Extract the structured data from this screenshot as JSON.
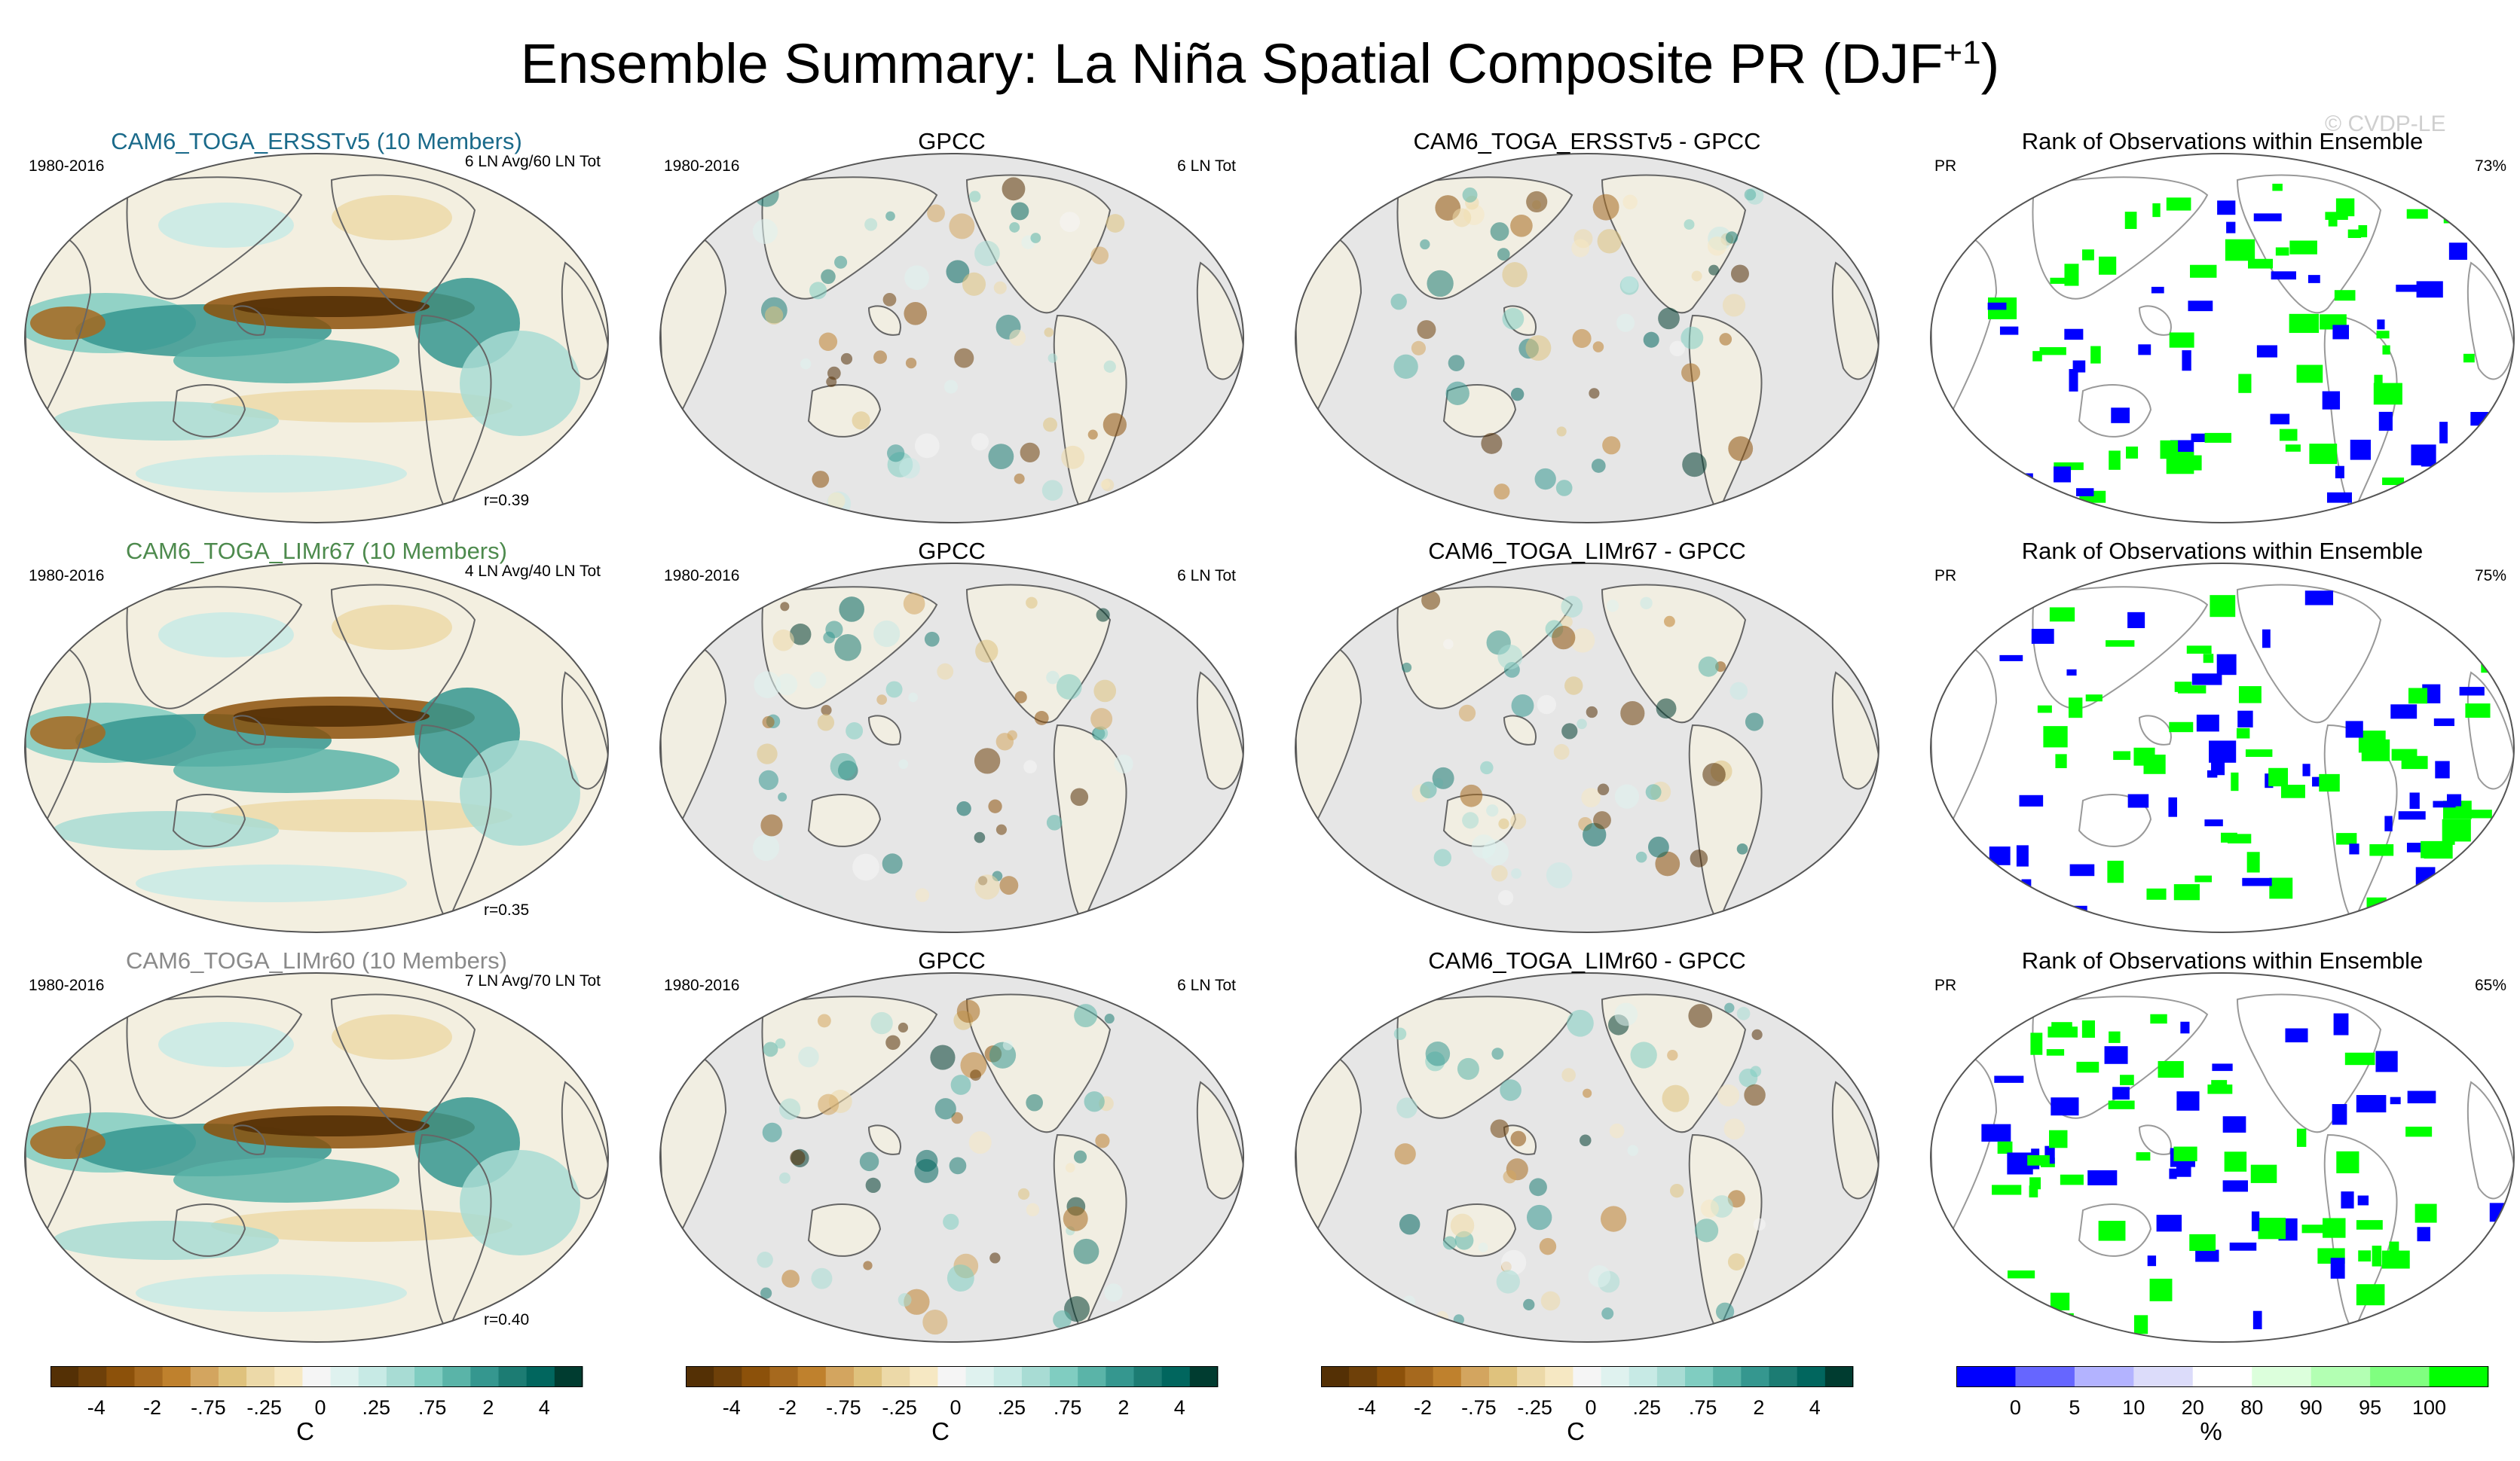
{
  "title": {
    "text": "Ensemble Summary: La Niña Spatial Composite PR (DJF",
    "sup": "+1",
    "close": ")"
  },
  "watermark": "© CVDP-LE",
  "colors": {
    "cam_ersst": "#1a6a8a",
    "cam_limr67": "#4d8a4d",
    "cam_limr60": "#8a8a8a",
    "land_mask": "#e6e6e6",
    "rank_low": "#0000ff",
    "rank_high": "#00ff00"
  },
  "chart_data": [
    {
      "type": "heatmap",
      "title": "CAM6_TOGA_ERSSTv5 (10 Members)",
      "title_color": "#1a6a8a",
      "left_label": "1980-2016",
      "right_label": "6 LN Avg/60 LN Tot",
      "corr_label": "r=0.39",
      "style": "model"
    },
    {
      "type": "heatmap",
      "title": "GPCC",
      "left_label": "1980-2016",
      "right_label": "6 LN Tot",
      "style": "obs"
    },
    {
      "type": "heatmap",
      "title": "CAM6_TOGA_ERSSTv5 - GPCC",
      "style": "diff"
    },
    {
      "type": "heatmap",
      "title": "Rank of Observations within Ensemble",
      "left_label": "PR",
      "right_label": "73%",
      "style": "rank"
    },
    {
      "type": "heatmap",
      "title": "CAM6_TOGA_LIMr67 (10 Members)",
      "title_color": "#4d8a4d",
      "left_label": "1980-2016",
      "right_label": "4 LN Avg/40 LN Tot",
      "corr_label": "r=0.35",
      "style": "model"
    },
    {
      "type": "heatmap",
      "title": "GPCC",
      "left_label": "1980-2016",
      "right_label": "6 LN Tot",
      "style": "obs"
    },
    {
      "type": "heatmap",
      "title": "CAM6_TOGA_LIMr67 - GPCC",
      "style": "diff"
    },
    {
      "type": "heatmap",
      "title": "Rank of Observations within Ensemble",
      "left_label": "PR",
      "right_label": "75%",
      "style": "rank"
    },
    {
      "type": "heatmap",
      "title": "CAM6_TOGA_LIMr60 (10 Members)",
      "title_color": "#8a8a8a",
      "left_label": "1980-2016",
      "right_label": "7 LN Avg/70 LN Tot",
      "corr_label": "r=0.40",
      "style": "model"
    },
    {
      "type": "heatmap",
      "title": "GPCC",
      "left_label": "1980-2016",
      "right_label": "6 LN Tot",
      "style": "obs"
    },
    {
      "type": "heatmap",
      "title": "CAM6_TOGA_LIMr60 - GPCC",
      "style": "diff"
    },
    {
      "type": "heatmap",
      "title": "Rank of Observations within Ensemble",
      "left_label": "PR",
      "right_label": "65%",
      "style": "rank"
    }
  ],
  "colorbars": [
    {
      "unit": "C",
      "labels": [
        "-4",
        "-2",
        "-.75",
        "-.25",
        "0",
        ".25",
        ".75",
        "2",
        "4"
      ],
      "colors": [
        "#543005",
        "#6e4009",
        "#8c510a",
        "#a6691e",
        "#bf812d",
        "#d3a55f",
        "#dfc27d",
        "#ecd9a8",
        "#f6e8c3",
        "#f5f5f5",
        "#dff2ef",
        "#c7eae5",
        "#a8dcd4",
        "#80cdc1",
        "#5ab4a8",
        "#35978f",
        "#1c7c73",
        "#01665e",
        "#003c30"
      ]
    },
    {
      "unit": "C",
      "labels": [
        "-4",
        "-2",
        "-.75",
        "-.25",
        "0",
        ".25",
        ".75",
        "2",
        "4"
      ],
      "colors": [
        "#543005",
        "#6e4009",
        "#8c510a",
        "#a6691e",
        "#bf812d",
        "#d3a55f",
        "#dfc27d",
        "#ecd9a8",
        "#f6e8c3",
        "#f5f5f5",
        "#dff2ef",
        "#c7eae5",
        "#a8dcd4",
        "#80cdc1",
        "#5ab4a8",
        "#35978f",
        "#1c7c73",
        "#01665e",
        "#003c30"
      ]
    },
    {
      "unit": "C",
      "labels": [
        "-4",
        "-2",
        "-.75",
        "-.25",
        "0",
        ".25",
        ".75",
        "2",
        "4"
      ],
      "colors": [
        "#543005",
        "#6e4009",
        "#8c510a",
        "#a6691e",
        "#bf812d",
        "#d3a55f",
        "#dfc27d",
        "#ecd9a8",
        "#f6e8c3",
        "#f5f5f5",
        "#dff2ef",
        "#c7eae5",
        "#a8dcd4",
        "#80cdc1",
        "#5ab4a8",
        "#35978f",
        "#1c7c73",
        "#01665e",
        "#003c30"
      ]
    },
    {
      "unit": "%",
      "labels": [
        "0",
        "5",
        "10",
        "20",
        "80",
        "90",
        "95",
        "100"
      ],
      "colors": [
        "#0000ff",
        "#6666ff",
        "#b3b3ff",
        "#dcdcfa",
        "#ffffff",
        "#dcffdc",
        "#b3ffb3",
        "#80ff80",
        "#00ff00"
      ]
    }
  ]
}
